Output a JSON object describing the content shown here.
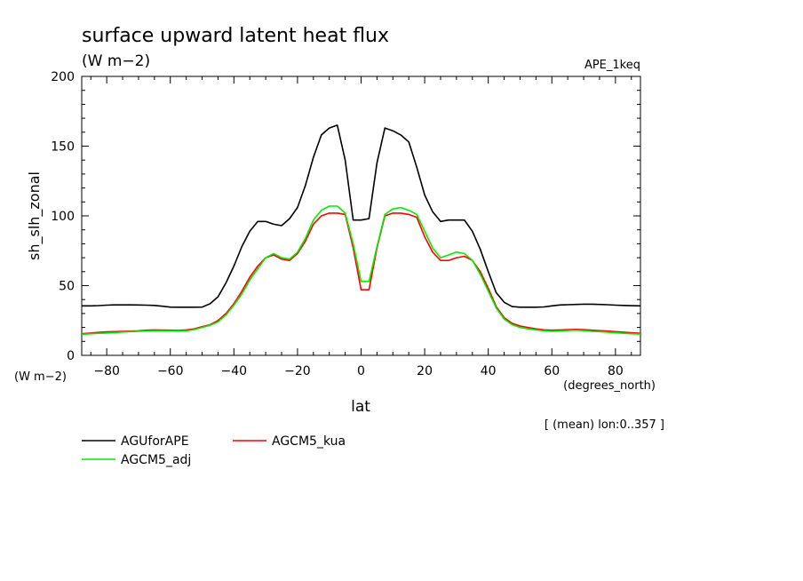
{
  "chart_data": {
    "type": "line",
    "title": "surface upward latent heat flux",
    "subtitle": "(W m−2)",
    "experiment_label": "APE_1keq",
    "xlabel": "lat",
    "x_units": "(degrees_north)",
    "ylabel": "sh_slh_zonal",
    "y_units": "(W m−2)",
    "note": "[ (mean) lon:0..357 ]",
    "xlim": [
      -87.8638,
      87.8638
    ],
    "ylim": [
      0,
      200
    ],
    "x_ticks": [
      -80,
      -60,
      -40,
      -20,
      0,
      20,
      40,
      60,
      80
    ],
    "x_tick_labels": [
      "−80",
      "−60",
      "−40",
      "−20",
      "0",
      "20",
      "40",
      "60",
      "80"
    ],
    "y_ticks": [
      0,
      50,
      100,
      150,
      200
    ],
    "y_tick_labels": [
      "0",
      "50",
      "100",
      "150",
      "200"
    ],
    "grid": false,
    "legend_position": "bottom-left",
    "x": [
      -87.86,
      -85,
      -82.5,
      -80,
      -77.5,
      -75,
      -72.5,
      -70,
      -67.5,
      -65,
      -62.5,
      -60,
      -57.5,
      -55,
      -52.5,
      -50,
      -47.5,
      -45,
      -42.5,
      -40,
      -37.5,
      -35,
      -32.5,
      -30,
      -27.5,
      -25,
      -22.5,
      -20,
      -17.5,
      -15,
      -12.5,
      -10,
      -7.5,
      -5,
      -2.5,
      0,
      2.5,
      5,
      7.5,
      10,
      12.5,
      15,
      17.5,
      20,
      22.5,
      25,
      27.5,
      30,
      32.5,
      35,
      37.5,
      40,
      42.5,
      45,
      47.5,
      50,
      52.5,
      55,
      57.5,
      60,
      62.5,
      65,
      67.5,
      70,
      72.5,
      75,
      77.5,
      80,
      82.5,
      85,
      87.86
    ],
    "series": [
      {
        "name": "AGUforAPE",
        "color": "#000000",
        "values": [
          35.5,
          35.5,
          35.7,
          36,
          36.2,
          36.2,
          36.2,
          36.1,
          36,
          35.8,
          35.2,
          34.6,
          34.5,
          34.5,
          34.5,
          34.6,
          37,
          42,
          52,
          64,
          78,
          89,
          96,
          96,
          94,
          93,
          98,
          106,
          122,
          142,
          158,
          163,
          165,
          140,
          97,
          97,
          98,
          138,
          163,
          161,
          158,
          153,
          135,
          115,
          103,
          96,
          97,
          97,
          97,
          89,
          76,
          60,
          45,
          38,
          35,
          34.5,
          34.5,
          34.5,
          34.7,
          35.5,
          36.1,
          36.3,
          36.5,
          36.7,
          36.7,
          36.5,
          36.3,
          36,
          35.8,
          35.6,
          35.5
        ]
      },
      {
        "name": "AGCM5_kua",
        "color": "#ff0000",
        "values": [
          15.5,
          16,
          16.5,
          16.8,
          17,
          17.2,
          17.4,
          17.6,
          18,
          18.2,
          18.1,
          18,
          17.9,
          18.2,
          19,
          20.5,
          22,
          25,
          30,
          37,
          46,
          56,
          64,
          70,
          72,
          69,
          68,
          73,
          82,
          94,
          100,
          102,
          102,
          101,
          77,
          47,
          47,
          77,
          100,
          102,
          102,
          101,
          99,
          85,
          74,
          68,
          68,
          70,
          71,
          68,
          60,
          48,
          35,
          27,
          23,
          21,
          20,
          19,
          18.3,
          18,
          18.2,
          18.5,
          18.6,
          18.4,
          18,
          17.7,
          17.4,
          17,
          16.6,
          16.2,
          15.8
        ]
      },
      {
        "name": "AGCM5_adj",
        "color": "#00ee00",
        "values": [
          15,
          15.5,
          15.8,
          16,
          16.3,
          16.7,
          17,
          17.2,
          17.4,
          17.6,
          17.6,
          17.5,
          17.4,
          17.6,
          18.5,
          20,
          21.5,
          24,
          29,
          36,
          44,
          54,
          62,
          70,
          73,
          70,
          69,
          74,
          84,
          97,
          104,
          107,
          107,
          102,
          80,
          53,
          53,
          78,
          101,
          105,
          106,
          104,
          101,
          89,
          77,
          70,
          72,
          74,
          73,
          68,
          58,
          46,
          34,
          26,
          22,
          20,
          19,
          18.3,
          17.6,
          17.2,
          17.4,
          17.8,
          18,
          17.7,
          17.2,
          17,
          16.6,
          16.2,
          15.8,
          15.5,
          15.2
        ]
      }
    ]
  }
}
